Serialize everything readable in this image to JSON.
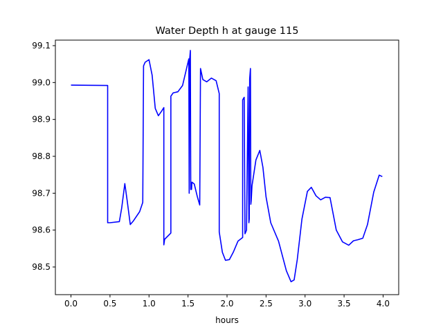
{
  "chart_data": {
    "type": "line",
    "title": "Water Depth h at gauge 115",
    "xlabel": "hours",
    "ylabel": "",
    "xlim": [
      -0.2,
      4.2
    ],
    "ylim": [
      98.425,
      99.115
    ],
    "xticks": [
      0.0,
      0.5,
      1.0,
      1.5,
      2.0,
      2.5,
      3.0,
      3.5,
      4.0
    ],
    "xtick_labels": [
      "0.0",
      "0.5",
      "1.0",
      "1.5",
      "2.0",
      "2.5",
      "3.0",
      "3.5",
      "4.0"
    ],
    "yticks": [
      98.5,
      98.6,
      98.7,
      98.8,
      98.9,
      99.0,
      99.1
    ],
    "ytick_labels": [
      "98.5",
      "98.6",
      "98.7",
      "98.8",
      "98.9",
      "99.0",
      "99.1"
    ],
    "grid": false,
    "legend": "none",
    "series": [
      {
        "color": "#0000ff",
        "x": [
          0.0,
          0.47,
          0.47,
          0.5,
          0.62,
          0.65,
          0.69,
          0.72,
          0.76,
          0.8,
          0.88,
          0.92,
          0.93,
          0.95,
          1.0,
          1.04,
          1.08,
          1.12,
          1.16,
          1.19,
          1.19,
          1.2,
          1.28,
          1.28,
          1.31,
          1.37,
          1.43,
          1.47,
          1.51,
          1.515,
          1.52,
          1.53,
          1.535,
          1.54,
          1.545,
          1.55,
          1.58,
          1.62,
          1.65,
          1.66,
          1.69,
          1.74,
          1.8,
          1.86,
          1.9,
          1.9,
          1.94,
          1.98,
          2.03,
          2.08,
          2.14,
          2.2,
          2.2,
          2.22,
          2.23,
          2.25,
          2.27,
          2.28,
          2.285,
          2.29,
          2.3,
          2.305,
          2.31,
          2.315,
          2.32,
          2.37,
          2.42,
          2.46,
          2.5,
          2.56,
          2.66,
          2.76,
          2.82,
          2.86,
          2.9,
          2.96,
          3.03,
          3.08,
          3.14,
          3.2,
          3.26,
          3.32,
          3.4,
          3.48,
          3.56,
          3.62,
          3.68,
          3.74,
          3.8,
          3.88,
          3.95,
          3.99
        ],
        "y": [
          98.993,
          98.992,
          98.62,
          98.62,
          98.623,
          98.66,
          98.726,
          98.68,
          98.615,
          98.625,
          98.65,
          98.675,
          99.045,
          99.055,
          99.062,
          99.02,
          98.93,
          98.91,
          98.922,
          98.932,
          98.56,
          98.575,
          98.592,
          98.963,
          98.972,
          98.975,
          98.992,
          99.028,
          99.064,
          98.7,
          99.06,
          99.087,
          98.71,
          98.725,
          98.71,
          98.73,
          98.725,
          98.69,
          98.668,
          99.038,
          99.008,
          99.002,
          99.012,
          99.005,
          98.97,
          98.595,
          98.54,
          98.518,
          98.52,
          98.54,
          98.57,
          98.58,
          98.953,
          98.96,
          98.59,
          98.6,
          98.988,
          98.62,
          98.63,
          99.01,
          99.038,
          98.67,
          98.68,
          98.7,
          98.72,
          98.79,
          98.816,
          98.77,
          98.69,
          98.62,
          98.57,
          98.49,
          98.46,
          98.465,
          98.52,
          98.63,
          98.705,
          98.716,
          98.693,
          98.682,
          98.689,
          98.688,
          98.6,
          98.568,
          98.559,
          98.571,
          98.574,
          98.578,
          98.615,
          98.703,
          98.749,
          98.745
        ]
      }
    ]
  }
}
